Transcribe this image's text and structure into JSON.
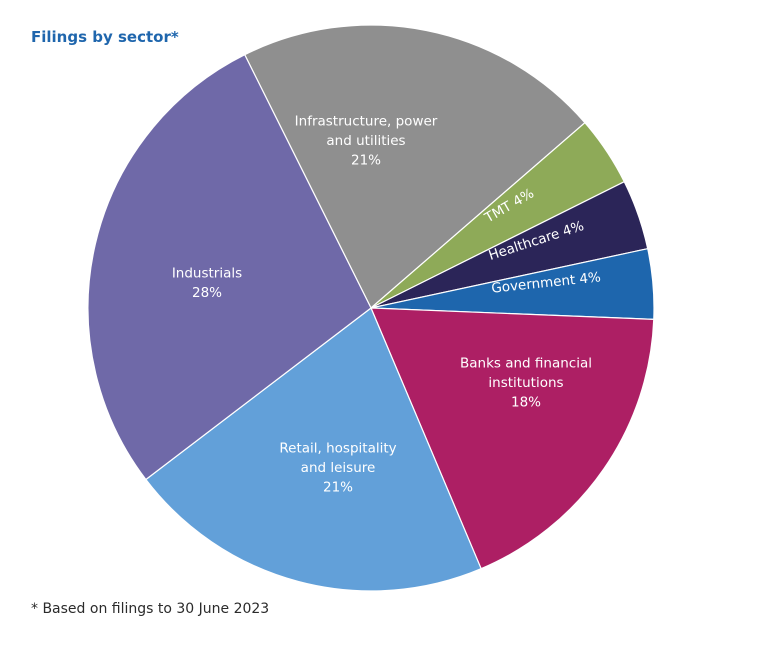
{
  "chart_data": {
    "type": "pie",
    "title": "Filings by sector*",
    "footnote": "* Based on filings to 30 June 2023",
    "slices": [
      {
        "name": "Infrastructure, power and utilities",
        "lines": [
          "Infrastructure, power",
          "and utilities",
          "21%"
        ],
        "value": 21,
        "color": "#8f8f8f"
      },
      {
        "name": "TMT",
        "lines": [
          "TMT 4%"
        ],
        "value": 4,
        "color": "#8eaa58"
      },
      {
        "name": "Healthcare",
        "lines": [
          "Healthcare 4%"
        ],
        "value": 4,
        "color": "#2b2558"
      },
      {
        "name": "Government",
        "lines": [
          "Government 4%"
        ],
        "value": 4,
        "color": "#1e66ad"
      },
      {
        "name": "Banks and financial institutions",
        "lines": [
          "Banks and financial",
          "institutions",
          "18%"
        ],
        "value": 18,
        "color": "#ad1f64"
      },
      {
        "name": "Retail, hospitality and leisure",
        "lines": [
          "Retail, hospitality",
          "and leisure",
          "21%"
        ],
        "value": 21,
        "color": "#62a0d9"
      },
      {
        "name": "Industrials",
        "lines": [
          "Industrials",
          "28%"
        ],
        "value": 28,
        "color": "#6f69a8"
      }
    ]
  }
}
